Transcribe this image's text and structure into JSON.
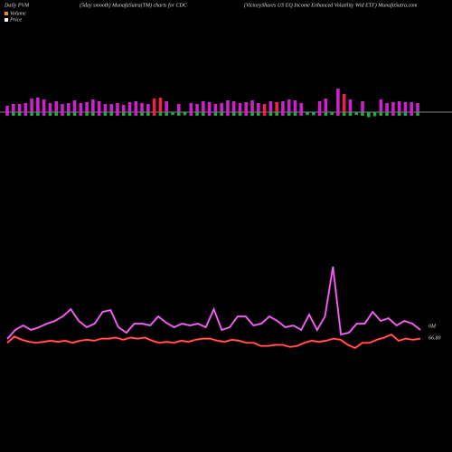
{
  "chart_data": {
    "type": "pvm",
    "title": "Daily PVM",
    "subtitle": "(5day smooth) MunafaSutra(TM) charts for CDC",
    "description": "(VictoryShares US EQ Income  Enhanced Volatility Wtd ETF) MunafaSutra.com",
    "legend": [
      "Volume",
      "Price"
    ],
    "legend_colors": [
      "#ff8c00",
      "#ffffff"
    ],
    "bars": {
      "values": [
        7,
        9,
        9,
        10,
        15,
        16,
        14,
        10,
        12,
        9,
        10,
        13,
        10,
        11,
        14,
        12,
        9,
        9,
        10,
        8,
        11,
        12,
        10,
        9,
        15,
        16,
        12,
        9,
        9,
        10,
        10,
        9,
        12,
        11,
        9,
        10,
        13,
        12,
        10,
        11,
        13,
        10,
        9,
        12,
        11,
        12,
        14,
        13,
        10,
        9,
        10,
        12,
        15,
        9,
        26,
        20,
        14,
        9,
        12,
        16,
        13,
        14,
        10,
        11,
        12,
        11,
        11,
        10
      ],
      "colors": [
        "#cc22cc",
        "#cc22cc",
        "#cc22cc",
        "#cc22cc",
        "#cc22cc",
        "#cc22cc",
        "#cc22cc",
        "#cc22cc",
        "#cc22cc",
        "#cc22cc",
        "#cc22cc",
        "#cc22cc",
        "#cc22cc",
        "#cc22cc",
        "#cc22cc",
        "#cc22cc",
        "#cc22cc",
        "#cc22cc",
        "#cc22cc",
        "#cc22cc",
        "#cc22cc",
        "#cc22cc",
        "#cc22cc",
        "#cc22cc",
        "#ee2244",
        "#ee2244",
        "#cc22cc",
        "#22aa44",
        "#cc22cc",
        "#22aa44",
        "#cc22cc",
        "#cc22cc",
        "#cc22cc",
        "#cc22cc",
        "#cc22cc",
        "#cc22cc",
        "#cc22cc",
        "#cc22cc",
        "#cc22cc",
        "#cc22cc",
        "#cc22cc",
        "#cc22cc",
        "#ee2244",
        "#cc22cc",
        "#ee2244",
        "#cc22cc",
        "#cc22cc",
        "#cc22cc",
        "#cc22cc",
        "#22aa44",
        "#22aa44",
        "#cc22cc",
        "#cc22cc",
        "#22aa44",
        "#cc22cc",
        "#ee2244",
        "#cc22cc",
        "#22aa44",
        "#cc22cc",
        "#22aa44",
        "#22aa44",
        "#cc22cc",
        "#cc22cc",
        "#cc22cc",
        "#cc22cc",
        "#cc22cc",
        "#cc22cc",
        "#cc22cc"
      ]
    },
    "series": [
      {
        "name": "Volume",
        "color": "#cc33cc",
        "values": [
          25,
          35,
          40,
          35,
          38,
          42,
          45,
          50,
          58,
          45,
          38,
          42,
          55,
          57,
          38,
          32,
          42,
          42,
          40,
          50,
          43,
          38,
          42,
          40,
          42,
          38,
          58,
          35,
          38,
          50,
          50,
          40,
          42,
          50,
          45,
          38,
          40,
          35,
          52,
          35,
          50,
          105,
          30,
          32,
          42,
          42,
          55,
          45,
          48,
          40,
          45,
          42,
          35
        ]
      },
      {
        "name": "Price",
        "color": "#ff2222",
        "values": [
          66.64,
          66.88,
          66.76,
          66.68,
          66.64,
          66.68,
          66.72,
          66.68,
          66.72,
          66.64,
          66.72,
          66.76,
          66.72,
          66.8,
          66.8,
          66.84,
          66.76,
          66.84,
          66.8,
          66.84,
          66.72,
          66.64,
          66.68,
          66.64,
          66.72,
          66.68,
          66.76,
          66.8,
          66.8,
          66.72,
          66.68,
          66.76,
          66.72,
          66.64,
          66.64,
          66.52,
          66.52,
          66.56,
          66.56,
          66.48,
          66.52,
          66.64,
          66.72,
          66.68,
          66.72,
          66.8,
          66.76,
          66.56,
          66.44,
          66.64,
          66.64,
          66.76,
          66.84,
          66.96,
          66.72,
          66.8,
          66.76,
          66.8
        ]
      }
    ],
    "right_labels": [
      "0M",
      "66.80"
    ]
  }
}
